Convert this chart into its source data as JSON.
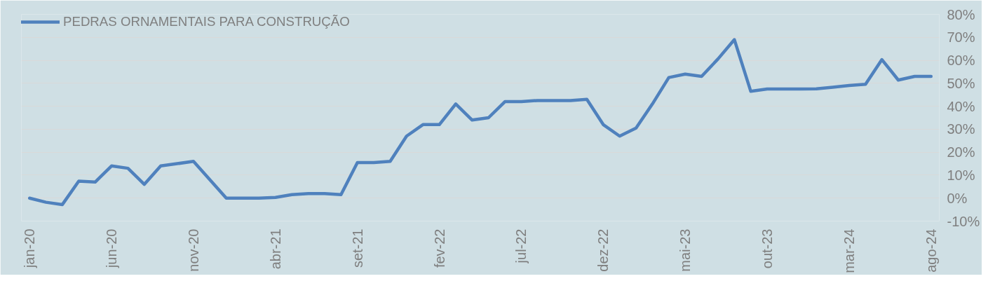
{
  "chart_data": {
    "type": "line",
    "categories": [
      "jan-20",
      null,
      null,
      null,
      null,
      "jun-20",
      null,
      null,
      null,
      null,
      "nov-20",
      null,
      null,
      null,
      null,
      "abr-21",
      null,
      null,
      null,
      null,
      "set-21",
      null,
      null,
      null,
      null,
      "fev-22",
      null,
      null,
      null,
      null,
      "jul-22",
      null,
      null,
      null,
      null,
      "dez-22",
      null,
      null,
      null,
      null,
      "mai-23",
      null,
      null,
      null,
      null,
      "out-23",
      null,
      null,
      null,
      null,
      "mar-24",
      null,
      null,
      null,
      null,
      "ago-24"
    ],
    "series": [
      {
        "name": "PEDRAS ORNAMENTAIS PARA CONSTRUÇÃO",
        "color": "#4f81bd",
        "values": [
          0,
          -1.8,
          -2.8,
          7.4,
          7,
          14,
          13,
          6,
          14,
          15,
          16,
          8,
          0,
          0,
          0,
          0.3,
          1.5,
          2,
          2,
          1.5,
          15.5,
          15.5,
          16,
          27,
          32,
          32,
          41,
          34,
          35,
          42,
          42,
          42.5,
          42.5,
          42.5,
          43,
          32,
          27,
          30.5,
          41,
          52.5,
          54,
          53,
          60.6,
          69,
          46.5,
          47.5,
          47.5,
          47.5,
          47.6,
          48.3,
          49,
          49.6,
          60.3,
          51.4,
          53,
          53
        ]
      }
    ],
    "ylim": [
      -10,
      80
    ],
    "yticks": [
      {
        "value": -10,
        "label": "-10%"
      },
      {
        "value": 0,
        "label": "0%"
      },
      {
        "value": 10,
        "label": "10%"
      },
      {
        "value": 20,
        "label": "20%"
      },
      {
        "value": 30,
        "label": "30%"
      },
      {
        "value": 40,
        "label": "40%"
      },
      {
        "value": 50,
        "label": "50%"
      },
      {
        "value": 60,
        "label": "60%"
      },
      {
        "value": 70,
        "label": "70%"
      },
      {
        "value": 80,
        "label": "80%"
      }
    ],
    "grid": "y",
    "legend": "top left",
    "line_style": "solid"
  }
}
